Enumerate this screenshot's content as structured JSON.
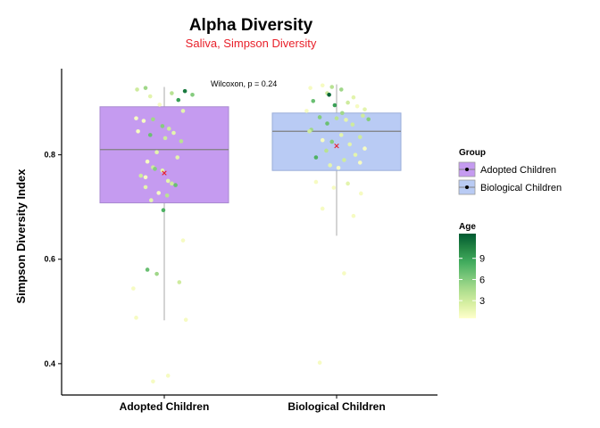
{
  "chart_data": {
    "type": "boxplot",
    "title": "Alpha Diversity",
    "subtitle": "Saliva, Simpson Diversity",
    "subtitle_color": "#e8202a",
    "xlabel": "",
    "ylabel": "Simpson Diversity Index",
    "ylim": [
      0.34,
      0.965
    ],
    "y_ticks": [
      0.4,
      0.6,
      0.8
    ],
    "y_tick_labels": [
      "0.4",
      "0.6",
      "0.8"
    ],
    "categories": [
      "Adopted Children",
      "Biological Children"
    ],
    "annotation": "Wilcoxon, p = 0.24",
    "grid": false,
    "mean_marker_color": "#e8202a",
    "boxes": [
      {
        "name": "Adopted Children",
        "fill": "#c59bf0",
        "stroke": "#a98ad1",
        "whisker_low": 0.483,
        "q1": 0.708,
        "median": 0.81,
        "q3": 0.892,
        "whisker_high": 0.93,
        "mean": 0.765
      },
      {
        "name": "Biological Children",
        "fill": "#b9cbf4",
        "stroke": "#9aaed9",
        "whisker_low": 0.645,
        "q1": 0.77,
        "median": 0.845,
        "q3": 0.88,
        "whisker_high": 0.935,
        "mean": 0.817
      }
    ],
    "points": [
      {
        "group": 0,
        "jitter": -0.29,
        "y": 0.925,
        "age": 3
      },
      {
        "group": 0,
        "jitter": -0.2,
        "y": 0.928,
        "age": 5
      },
      {
        "group": 0,
        "jitter": 0.22,
        "y": 0.922,
        "age": 11
      },
      {
        "group": 0,
        "jitter": 0.08,
        "y": 0.918,
        "age": 4
      },
      {
        "group": 0,
        "jitter": 0.3,
        "y": 0.915,
        "age": 6
      },
      {
        "group": 0,
        "jitter": -0.15,
        "y": 0.912,
        "age": 2
      },
      {
        "group": 0,
        "jitter": 0.15,
        "y": 0.905,
        "age": 9
      },
      {
        "group": 0,
        "jitter": -0.05,
        "y": 0.896,
        "age": 1
      },
      {
        "group": 0,
        "jitter": 0.2,
        "y": 0.884,
        "age": 2
      },
      {
        "group": 0,
        "jitter": -0.3,
        "y": 0.87,
        "age": 1
      },
      {
        "group": 0,
        "jitter": -0.22,
        "y": 0.865,
        "age": 1
      },
      {
        "group": 0,
        "jitter": -0.12,
        "y": 0.868,
        "age": 5
      },
      {
        "group": 0,
        "jitter": -0.02,
        "y": 0.855,
        "age": 6
      },
      {
        "group": 0,
        "jitter": 0.05,
        "y": 0.85,
        "age": 3
      },
      {
        "group": 0,
        "jitter": 0.1,
        "y": 0.842,
        "age": 2
      },
      {
        "group": 0,
        "jitter": -0.28,
        "y": 0.845,
        "age": 1
      },
      {
        "group": 0,
        "jitter": -0.15,
        "y": 0.838,
        "age": 7
      },
      {
        "group": 0,
        "jitter": 0.01,
        "y": 0.832,
        "age": 3
      },
      {
        "group": 0,
        "jitter": 0.18,
        "y": 0.826,
        "age": 4
      },
      {
        "group": 0,
        "jitter": -0.08,
        "y": 0.805,
        "age": 2
      },
      {
        "group": 0,
        "jitter": 0.14,
        "y": 0.795,
        "age": 2
      },
      {
        "group": 0,
        "jitter": -0.18,
        "y": 0.787,
        "age": 1
      },
      {
        "group": 0,
        "jitter": -0.12,
        "y": 0.776,
        "age": 3
      },
      {
        "group": 0,
        "jitter": -0.1,
        "y": 0.773,
        "age": 6
      },
      {
        "group": 0,
        "jitter": -0.02,
        "y": 0.77,
        "age": 2
      },
      {
        "group": 0,
        "jitter": -0.25,
        "y": 0.76,
        "age": 3
      },
      {
        "group": 0,
        "jitter": -0.2,
        "y": 0.757,
        "age": 1
      },
      {
        "group": 0,
        "jitter": 0.04,
        "y": 0.75,
        "age": 2
      },
      {
        "group": 0,
        "jitter": 0.08,
        "y": 0.745,
        "age": 3
      },
      {
        "group": 0,
        "jitter": 0.12,
        "y": 0.742,
        "age": 7
      },
      {
        "group": 0,
        "jitter": -0.2,
        "y": 0.738,
        "age": 2
      },
      {
        "group": 0,
        "jitter": -0.06,
        "y": 0.727,
        "age": 1
      },
      {
        "group": 0,
        "jitter": 0.03,
        "y": 0.722,
        "age": 4
      },
      {
        "group": 0,
        "jitter": -0.14,
        "y": 0.713,
        "age": 2
      },
      {
        "group": 0,
        "jitter": -0.01,
        "y": 0.694,
        "age": 8
      },
      {
        "group": 0,
        "jitter": 0.2,
        "y": 0.636,
        "age": 1
      },
      {
        "group": 0,
        "jitter": -0.18,
        "y": 0.58,
        "age": 7
      },
      {
        "group": 0,
        "jitter": -0.08,
        "y": 0.572,
        "age": 5
      },
      {
        "group": 0,
        "jitter": 0.16,
        "y": 0.556,
        "age": 3
      },
      {
        "group": 0,
        "jitter": -0.33,
        "y": 0.544,
        "age": 1
      },
      {
        "group": 0,
        "jitter": -0.3,
        "y": 0.488,
        "age": 1
      },
      {
        "group": 0,
        "jitter": 0.23,
        "y": 0.484,
        "age": 1
      },
      {
        "group": 0,
        "jitter": 0.04,
        "y": 0.377,
        "age": 1
      },
      {
        "group": 0,
        "jitter": -0.12,
        "y": 0.366,
        "age": 1
      },
      {
        "group": 1,
        "jitter": -0.15,
        "y": 0.933,
        "age": 1
      },
      {
        "group": 1,
        "jitter": -0.05,
        "y": 0.93,
        "age": 4
      },
      {
        "group": 1,
        "jitter": -0.28,
        "y": 0.928,
        "age": 1
      },
      {
        "group": 1,
        "jitter": 0.05,
        "y": 0.925,
        "age": 5
      },
      {
        "group": 1,
        "jitter": -0.1,
        "y": 0.918,
        "age": 3
      },
      {
        "group": 1,
        "jitter": -0.08,
        "y": 0.915,
        "age": 12
      },
      {
        "group": 1,
        "jitter": 0.18,
        "y": 0.91,
        "age": 2
      },
      {
        "group": 1,
        "jitter": -0.25,
        "y": 0.903,
        "age": 7
      },
      {
        "group": 1,
        "jitter": 0.12,
        "y": 0.9,
        "age": 3
      },
      {
        "group": 1,
        "jitter": -0.02,
        "y": 0.895,
        "age": 9
      },
      {
        "group": 1,
        "jitter": 0.22,
        "y": 0.893,
        "age": 1
      },
      {
        "group": 1,
        "jitter": 0.3,
        "y": 0.887,
        "age": 2
      },
      {
        "group": 1,
        "jitter": -0.32,
        "y": 0.884,
        "age": 1
      },
      {
        "group": 1,
        "jitter": 0.06,
        "y": 0.88,
        "age": 5
      },
      {
        "group": 1,
        "jitter": 0.28,
        "y": 0.875,
        "age": 3
      },
      {
        "group": 1,
        "jitter": -0.18,
        "y": 0.872,
        "age": 6
      },
      {
        "group": 1,
        "jitter": 0.0,
        "y": 0.87,
        "age": 4
      },
      {
        "group": 1,
        "jitter": 0.1,
        "y": 0.867,
        "age": 2
      },
      {
        "group": 1,
        "jitter": 0.34,
        "y": 0.868,
        "age": 6
      },
      {
        "group": 1,
        "jitter": -0.1,
        "y": 0.86,
        "age": 7
      },
      {
        "group": 1,
        "jitter": 0.17,
        "y": 0.858,
        "age": 3
      },
      {
        "group": 1,
        "jitter": -0.27,
        "y": 0.848,
        "age": 5
      },
      {
        "group": 1,
        "jitter": -0.29,
        "y": 0.845,
        "age": 3
      },
      {
        "group": 1,
        "jitter": 0.05,
        "y": 0.838,
        "age": 2
      },
      {
        "group": 1,
        "jitter": 0.25,
        "y": 0.834,
        "age": 3
      },
      {
        "group": 1,
        "jitter": -0.15,
        "y": 0.828,
        "age": 1
      },
      {
        "group": 1,
        "jitter": -0.05,
        "y": 0.825,
        "age": 6
      },
      {
        "group": 1,
        "jitter": 0.14,
        "y": 0.82,
        "age": 2
      },
      {
        "group": 1,
        "jitter": 0.3,
        "y": 0.812,
        "age": 1
      },
      {
        "group": 1,
        "jitter": -0.11,
        "y": 0.808,
        "age": 4
      },
      {
        "group": 1,
        "jitter": 0.2,
        "y": 0.8,
        "age": 2
      },
      {
        "group": 1,
        "jitter": -0.22,
        "y": 0.795,
        "age": 8
      },
      {
        "group": 1,
        "jitter": 0.08,
        "y": 0.79,
        "age": 3
      },
      {
        "group": 1,
        "jitter": 0.25,
        "y": 0.785,
        "age": 1
      },
      {
        "group": 1,
        "jitter": -0.07,
        "y": 0.78,
        "age": 2
      },
      {
        "group": 1,
        "jitter": 0.02,
        "y": 0.775,
        "age": 1
      },
      {
        "group": 1,
        "jitter": -0.22,
        "y": 0.748,
        "age": 1
      },
      {
        "group": 1,
        "jitter": 0.12,
        "y": 0.745,
        "age": 2
      },
      {
        "group": 1,
        "jitter": -0.03,
        "y": 0.737,
        "age": 1
      },
      {
        "group": 1,
        "jitter": 0.26,
        "y": 0.726,
        "age": 1
      },
      {
        "group": 1,
        "jitter": -0.15,
        "y": 0.697,
        "age": 1
      },
      {
        "group": 1,
        "jitter": 0.18,
        "y": 0.683,
        "age": 1
      },
      {
        "group": 1,
        "jitter": 0.08,
        "y": 0.573,
        "age": 1
      },
      {
        "group": 1,
        "jitter": -0.18,
        "y": 0.402,
        "age": 1
      }
    ],
    "legend": {
      "position": "right",
      "group_title": "Group",
      "group_items": [
        {
          "label": "Adopted Children",
          "fill": "#c59bf0"
        },
        {
          "label": "Biological Children",
          "fill": "#b9cbf4"
        }
      ],
      "age_title": "Age",
      "age_range": [
        0.5,
        12.5
      ],
      "age_ticks": [
        3,
        6,
        9
      ],
      "age_tick_labels": [
        "3",
        "6",
        "9"
      ],
      "age_colors": [
        "#ffffcc",
        "#d9f0a3",
        "#addd8e",
        "#78c679",
        "#41ab5d",
        "#238443",
        "#005a32"
      ]
    }
  }
}
